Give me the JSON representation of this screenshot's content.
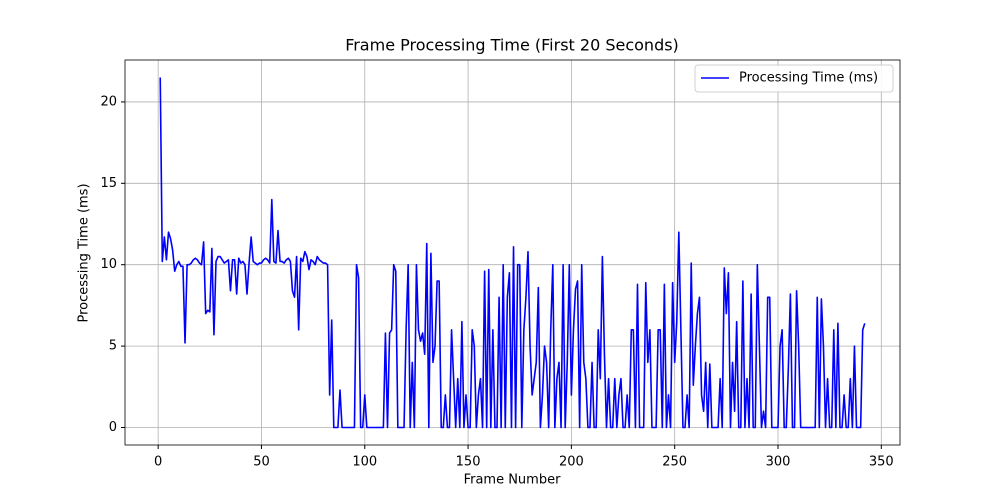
{
  "chart_data": {
    "type": "line",
    "title": "Frame Processing Time (First 20 Seconds)",
    "x_label": "Frame Number",
    "y_label": "Processing Time (ms)",
    "xlim": [
      -16.05,
      359.05
    ],
    "ylim": [
      -1.075,
      22.575
    ],
    "xticks": [
      0,
      50,
      100,
      150,
      200,
      250,
      300,
      350
    ],
    "yticks": [
      0,
      5,
      10,
      15,
      20
    ],
    "grid": true,
    "legend": "upper right",
    "x": [
      1,
      2,
      3,
      4,
      5,
      6,
      7,
      8,
      9,
      10,
      11,
      12,
      13,
      14,
      15,
      16,
      17,
      18,
      19,
      20,
      21,
      22,
      23,
      24,
      25,
      26,
      27,
      28,
      29,
      30,
      31,
      32,
      33,
      34,
      35,
      36,
      37,
      38,
      39,
      40,
      41,
      42,
      43,
      44,
      45,
      46,
      47,
      48,
      49,
      50,
      51,
      52,
      53,
      54,
      55,
      56,
      57,
      58,
      59,
      60,
      61,
      62,
      63,
      64,
      65,
      66,
      67,
      68,
      69,
      70,
      71,
      72,
      73,
      74,
      75,
      76,
      77,
      78,
      79,
      80,
      81,
      82,
      83,
      84,
      85,
      86,
      87,
      88,
      89,
      90,
      91,
      92,
      93,
      94,
      95,
      96,
      97,
      98,
      99,
      100,
      101,
      102,
      103,
      104,
      105,
      106,
      107,
      108,
      109,
      110,
      111,
      112,
      113,
      114,
      115,
      116,
      117,
      118,
      119,
      120,
      121,
      122,
      123,
      124,
      125,
      126,
      127,
      128,
      129,
      130,
      131,
      132,
      133,
      134,
      135,
      136,
      137,
      138,
      139,
      140,
      141,
      142,
      143,
      144,
      145,
      146,
      147,
      148,
      149,
      150,
      151,
      152,
      153,
      154,
      155,
      156,
      157,
      158,
      159,
      160,
      161,
      162,
      163,
      164,
      165,
      166,
      167,
      168,
      169,
      170,
      171,
      172,
      173,
      174,
      175,
      176,
      177,
      178,
      179,
      180,
      181,
      182,
      183,
      184,
      185,
      186,
      187,
      188,
      189,
      190,
      191,
      192,
      193,
      194,
      195,
      196,
      197,
      198,
      199,
      200,
      201,
      202,
      203,
      204,
      205,
      206,
      207,
      208,
      209,
      210,
      211,
      212,
      213,
      214,
      215,
      216,
      217,
      218,
      219,
      220,
      221,
      222,
      223,
      224,
      225,
      226,
      227,
      228,
      229,
      230,
      231,
      232,
      233,
      234,
      235,
      236,
      237,
      238,
      239,
      240,
      241,
      242,
      243,
      244,
      245,
      246,
      247,
      248,
      249,
      250,
      251,
      252,
      253,
      254,
      255,
      256,
      257,
      258,
      259,
      260,
      261,
      262,
      263,
      264,
      265,
      266,
      267,
      268,
      269,
      270,
      271,
      272,
      273,
      274,
      275,
      276,
      277,
      278,
      279,
      280,
      281,
      282,
      283,
      284,
      285,
      286,
      287,
      288,
      289,
      290,
      291,
      292,
      293,
      294,
      295,
      296,
      297,
      298,
      299,
      300,
      301,
      302,
      303,
      304,
      305,
      306,
      307,
      308,
      309,
      310,
      311,
      312,
      313,
      314,
      315,
      316,
      317,
      318,
      319,
      320,
      321,
      322,
      323,
      324,
      325,
      326,
      327,
      328,
      329,
      330,
      331,
      332,
      333,
      334,
      335,
      336,
      337,
      338,
      339,
      340,
      341,
      342
    ],
    "series": [
      {
        "name": "Processing Time (ms)",
        "color": "#0000ff",
        "values": [
          21.5,
          10.2,
          11.7,
          10.3,
          12,
          11.6,
          10.9,
          9.6,
          10,
          10.2,
          9.9,
          9.9,
          5.2,
          10,
          10,
          10.1,
          10.3,
          10.4,
          10.3,
          10.1,
          10,
          11.4,
          7,
          7.2,
          7.1,
          11,
          5.7,
          10.2,
          10.5,
          10.5,
          10.3,
          10.1,
          10.2,
          10.3,
          8.4,
          10.3,
          10.3,
          8.2,
          10.4,
          10.1,
          10.2,
          10,
          8.2,
          10.1,
          11.7,
          10.2,
          10.1,
          10,
          10.1,
          10.1,
          10.3,
          10.4,
          10.3,
          10.1,
          14,
          10.2,
          10.1,
          12.1,
          10.2,
          10.2,
          10.1,
          10.3,
          10.4,
          10.2,
          8.4,
          8,
          10.5,
          6,
          10.4,
          10.2,
          10.8,
          10.5,
          9.7,
          10.3,
          10.2,
          10,
          10.5,
          10.3,
          10.2,
          10.1,
          10.1,
          10,
          2,
          6.6,
          0,
          0,
          0,
          2.3,
          0,
          0,
          0,
          0,
          0,
          0,
          0,
          10,
          9.2,
          0,
          0,
          2,
          0,
          0,
          0,
          0,
          0,
          0,
          0,
          0,
          0,
          5.8,
          0,
          5.8,
          6,
          10,
          9.6,
          0,
          0,
          0,
          0,
          6,
          10,
          0,
          4,
          0,
          10,
          6,
          5.3,
          5.8,
          4.5,
          11.3,
          0,
          10.7,
          4,
          5,
          9,
          9,
          0,
          0,
          2,
          0,
          0,
          6,
          3,
          0,
          3,
          0,
          6.5,
          0,
          2,
          0,
          0,
          6,
          5,
          0,
          2,
          3,
          0,
          9.6,
          0,
          9.7,
          0,
          6,
          0,
          0,
          8,
          0,
          10,
          0,
          8,
          9.5,
          0,
          11.1,
          0,
          10,
          10,
          0,
          6,
          8,
          10.8,
          5,
          2,
          3,
          4,
          8.6,
          0,
          2,
          5,
          4,
          0,
          6,
          10,
          0,
          3,
          4,
          0,
          10,
          0,
          4,
          10,
          2,
          6,
          8.5,
          9,
          0,
          10,
          4,
          3,
          0,
          0,
          4,
          0,
          0,
          6,
          3,
          10.5,
          4.5,
          0,
          3,
          0,
          0,
          3,
          0,
          2,
          3,
          0,
          0,
          2,
          0,
          6,
          6,
          0,
          8.8,
          0,
          0,
          0,
          8.9,
          4,
          6,
          0,
          0,
          0,
          6,
          6,
          0,
          8.8,
          0,
          2,
          0,
          8.9,
          4,
          6.5,
          12,
          6,
          0,
          0,
          2,
          0,
          10.1,
          2.6,
          5,
          7,
          8,
          2,
          1,
          4,
          0,
          3.9,
          0,
          0,
          0,
          0,
          3,
          0,
          9.8,
          7,
          9.5,
          0,
          4,
          1,
          6.5,
          0,
          0,
          9,
          0,
          3,
          0,
          8.2,
          0,
          0,
          10,
          5,
          0,
          1,
          0,
          8,
          8,
          0,
          0,
          0,
          0,
          5,
          6,
          0,
          0,
          3.6,
          8.2,
          0,
          0,
          8.4,
          5,
          0,
          0,
          0,
          0,
          0,
          0,
          0,
          0,
          8,
          0,
          7.9,
          5,
          0,
          3,
          0,
          0,
          6,
          0,
          6.4,
          0,
          0,
          2,
          0,
          0,
          3,
          0,
          5,
          0,
          0,
          0,
          6,
          6.4
        ]
      }
    ]
  }
}
